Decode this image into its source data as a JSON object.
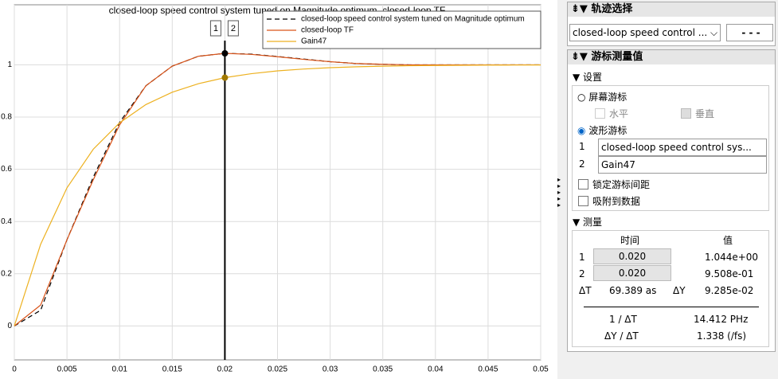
{
  "chart_data": {
    "type": "line",
    "title": "closed-loop speed control system tuned on Magnitude optimum, closed-loop TF",
    "x": [
      0,
      0.0025,
      0.005,
      0.0075,
      0.01,
      0.0125,
      0.015,
      0.0175,
      0.02,
      0.0225,
      0.025,
      0.0275,
      0.03,
      0.0325,
      0.035,
      0.0375,
      0.04,
      0.0425,
      0.045,
      0.0475,
      0.05
    ],
    "xlim": [
      0,
      0.05
    ],
    "xticks": [
      0,
      0.005,
      0.01,
      0.015,
      0.02,
      0.025,
      0.03,
      0.035,
      0.04,
      0.045,
      0.05
    ],
    "ylim": [
      -0.13,
      1.23
    ],
    "yticks": [
      0,
      0.2,
      0.4,
      0.6,
      0.8,
      1
    ],
    "grid": true,
    "legend": "upper-right",
    "series": [
      {
        "name": "closed-loop speed control system tuned on Magnitude optimum",
        "color": "#000000",
        "dash": "dashed",
        "values": [
          0,
          0.06,
          0.33,
          0.57,
          0.78,
          0.92,
          0.995,
          1.033,
          1.044,
          1.041,
          1.032,
          1.022,
          1.012,
          1.005,
          1.002,
          1.0,
          1.0,
          1.0,
          1.0,
          1.0,
          1.0
        ]
      },
      {
        "name": "closed-loop TF",
        "color": "#d95319",
        "dash": "solid",
        "values": [
          0,
          0.08,
          0.33,
          0.56,
          0.77,
          0.92,
          0.995,
          1.033,
          1.044,
          1.04,
          1.031,
          1.021,
          1.012,
          1.005,
          1.002,
          1.0,
          1.0,
          1.0,
          1.0,
          1.0,
          1.0
        ]
      },
      {
        "name": "Gain47",
        "color": "#edb120",
        "dash": "solid",
        "values": [
          0,
          0.313,
          0.529,
          0.677,
          0.778,
          0.848,
          0.895,
          0.928,
          0.951,
          0.966,
          0.977,
          0.984,
          0.989,
          0.9925,
          0.9949,
          0.9965,
          0.9976,
          0.9983,
          0.9989,
          0.9992,
          0.9995
        ]
      }
    ],
    "cursors": [
      {
        "label": "1",
        "x": 0.02,
        "y": 1.044,
        "color": "#000000"
      },
      {
        "label": "2",
        "x": 0.02,
        "y": 0.9508,
        "color": "#a07800"
      }
    ]
  },
  "panel": {
    "trace_select": {
      "title": "轨迹选择",
      "selected": "closed-loop speed control ..."
    },
    "cursors": {
      "title": "游标测量值",
      "settings": "设置",
      "screen_cursors": "屏幕游标",
      "horizontal": "水平",
      "vertical": "垂直",
      "waveform_cursors": "波形游标",
      "cursor1": {
        "label": "1",
        "trace": "closed-loop speed control sys..."
      },
      "cursor2": {
        "label": "2",
        "trace": "Gain47"
      },
      "lock": "锁定游标间距",
      "snap": "吸附到数据",
      "measurements": "测量",
      "time_header": "时间",
      "value_header": "值",
      "rows": [
        {
          "label": "1",
          "time": "0.020",
          "value": "1.044e+00"
        },
        {
          "label": "2",
          "time": "0.020",
          "value": "9.508e-01"
        }
      ],
      "dt": {
        "label": "ΔT",
        "value": "69.389 as"
      },
      "dy": {
        "label": "ΔY",
        "value": "9.285e-02"
      },
      "inv_dt": {
        "label": "1 / ΔT",
        "value": "14.412 PHz"
      },
      "dydt": {
        "label": "ΔY / ΔT",
        "value": "1.338 (/fs)"
      }
    }
  }
}
